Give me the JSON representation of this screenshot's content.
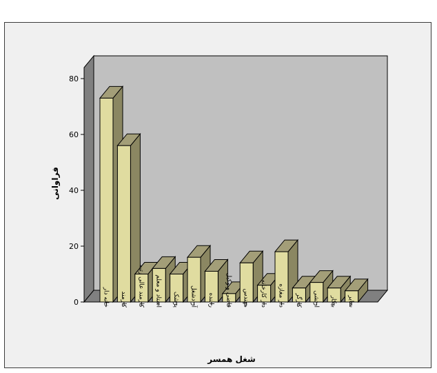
{
  "chart_data": {
    "type": "bar",
    "title": "",
    "xlabel": "شغل همسر",
    "ylabel": "فراوانی",
    "ylim": [
      0,
      80
    ],
    "yticks": [
      0,
      20,
      40,
      60,
      80
    ],
    "grid": false,
    "style": "3d",
    "categories": [
      "خانه دار",
      "کارمند",
      "کارمند عالی رتبه",
      "استاد و معلم",
      "پزشک",
      "آزادشغل",
      "راننده",
      "قاضی و وکیل",
      "مهندس",
      "دار کارخانه",
      "دار مغازه",
      "کارگر",
      "ارتشی",
      "بیکار",
      "سایر"
    ],
    "values": [
      73,
      56,
      10,
      12,
      10,
      16,
      11,
      3,
      14,
      6,
      18,
      5,
      7,
      5,
      4
    ],
    "colors": {
      "bar_front": "#e0dca0",
      "bar_side": "#8b8762",
      "bar_top": "#a39e78",
      "back_wall": "#c0c0c0",
      "side_wall": "#808080",
      "floor": "#808080",
      "frame_bg": "#f0f0f0"
    }
  }
}
